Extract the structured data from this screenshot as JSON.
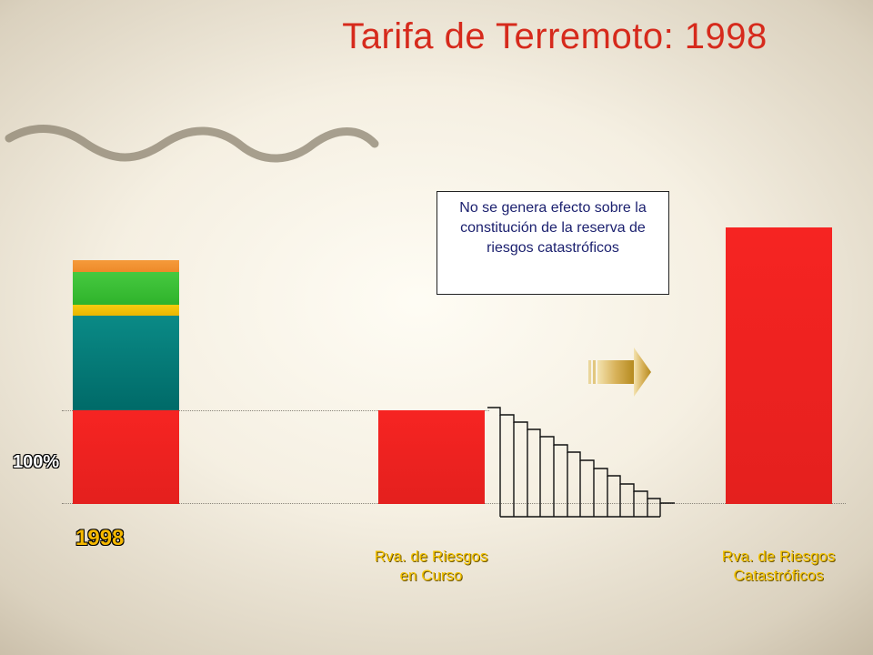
{
  "slide": {
    "title": "Tarifa de Terremoto: 1998",
    "percent_label": "100%",
    "year_label": "1998",
    "label_rva_curso": [
      "Rva. de Riesgos",
      "en Curso"
    ],
    "label_rva_cat": [
      "Rva. de Riesgos",
      "Catastróficos"
    ],
    "note": "No se genera efecto sobre la constitución de la reserva de riesgos catastróficos"
  },
  "colors": {
    "title": "#d62a1c",
    "red": "#f0201e",
    "teal": "#007a78",
    "yellow": "#f2c200",
    "green": "#3ec33a",
    "orange": "#f39133",
    "label_yellow": "#f5c400",
    "arrow_gold": "#c79b2c"
  },
  "stacked_bar_segments": [
    "red",
    "teal",
    "yellow",
    "green",
    "orange"
  ],
  "icons": [
    "wave-decoration",
    "right-arrow-icon",
    "staircase-schedule"
  ]
}
